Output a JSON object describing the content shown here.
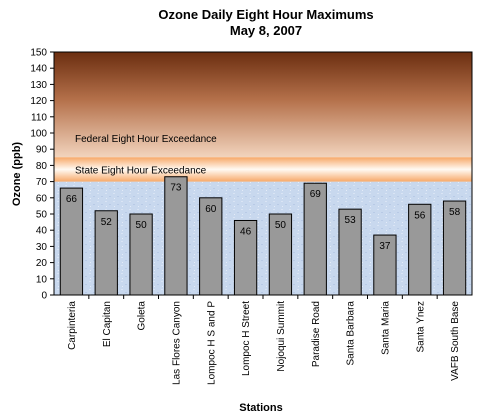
{
  "chart_data": {
    "type": "bar",
    "title": "Ozone Daily Eight Hour Maximums",
    "subtitle": "May 8, 2007",
    "xlabel": "Stations",
    "ylabel": "Ozone (ppb)",
    "ylim": [
      0,
      150
    ],
    "yticks": [
      0,
      10,
      20,
      30,
      40,
      50,
      60,
      70,
      80,
      90,
      100,
      110,
      120,
      130,
      140,
      150
    ],
    "categories": [
      "Carpinteria",
      "El Capitan",
      "Goleta",
      "Las Flores Canyon",
      "Lompoc H S and P",
      "Lompoc H Street",
      "Nojoqui Summit",
      "Paradise Road",
      "Santa Barbara",
      "Santa Maria",
      "Santa Ynez",
      "VAFB South Base"
    ],
    "values": [
      66,
      52,
      50,
      73,
      60,
      46,
      50,
      69,
      53,
      37,
      56,
      58
    ],
    "bands": [
      {
        "label": "Federal Eight Hour Exceedance",
        "from": 85,
        "to": 150
      },
      {
        "label": "State Eight Hour Exceedance",
        "from": 70,
        "to": 85
      }
    ],
    "colors": {
      "bar": "#999999",
      "federal_top": "#6b2e10",
      "federal_bottom": "#f2d4bd",
      "state_edge": "#f7a868",
      "state_center": "#fffaf3",
      "below": "#c8d8ee"
    }
  }
}
